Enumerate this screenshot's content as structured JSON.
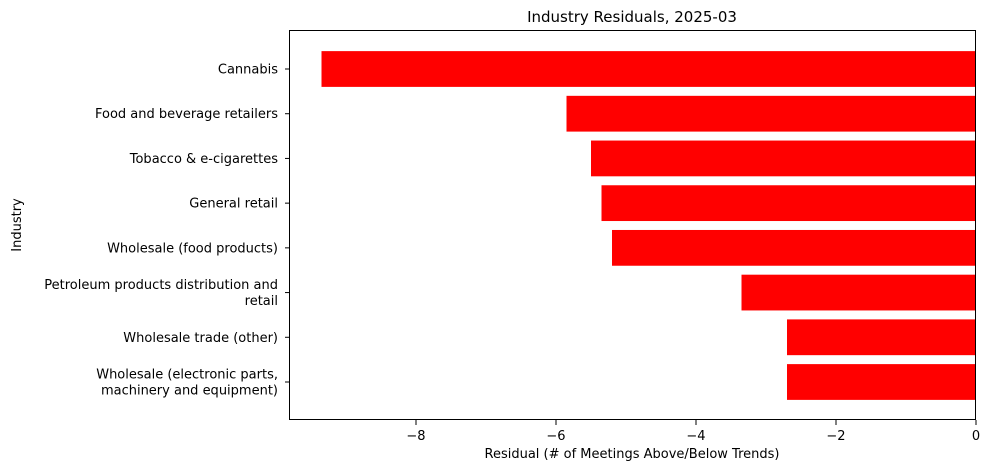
{
  "chart_data": {
    "type": "bar",
    "orientation": "horizontal",
    "title": "Industry Residuals, 2025-03",
    "xlabel": "Residual (# of Meetings Above/Below Trends)",
    "ylabel": "Industry",
    "categories": [
      "Cannabis",
      "Food and beverage retailers",
      "Tobacco & e-cigarettes",
      "General retail",
      "Wholesale (food products)",
      "Petroleum products distribution and\nretail",
      "Wholesale trade (other)",
      "Wholesale (electronic parts,\nmachinery and equipment)"
    ],
    "values": [
      -9.35,
      -5.85,
      -5.5,
      -5.35,
      -5.2,
      -3.35,
      -2.7,
      -2.7
    ],
    "bar_color": "#ff0000",
    "xlim": [
      -9.8,
      0
    ],
    "xticks": [
      -8,
      -6,
      -4,
      -2,
      0
    ],
    "xtick_labels": [
      "−8",
      "−6",
      "−4",
      "−2",
      "0"
    ],
    "grid": false,
    "legend": "none"
  }
}
